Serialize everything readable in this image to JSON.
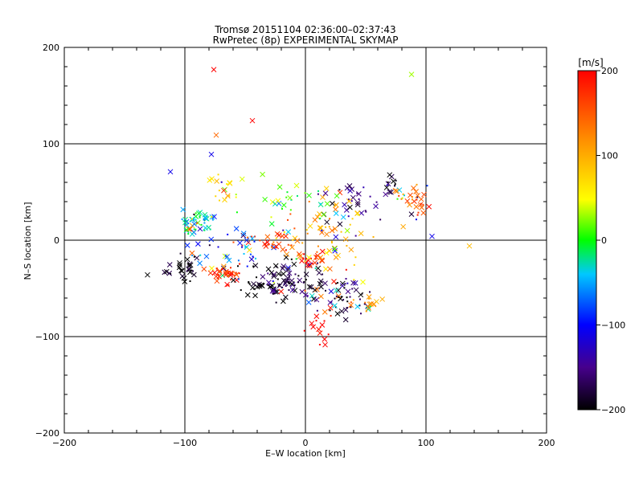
{
  "chart_data": {
    "type": "scatter",
    "title": "Tromsø 20151104 02:36:00–02:37:43",
    "subtitle": "RwPretec (8p) EXPERIMENTAL SKYMAP",
    "xlabel": "E–W location [km]",
    "ylabel": "N–S location [km]",
    "xlim": [
      -200,
      200
    ],
    "ylim": [
      -200,
      200
    ],
    "x_ticks": [
      "−200",
      "−100",
      "0",
      "100",
      "200"
    ],
    "y_ticks": [
      "−200",
      "−100",
      "0",
      "100",
      "200"
    ],
    "grid": true,
    "colorbar": {
      "label": "[m/s]",
      "range": [
        -200,
        200
      ],
      "ticks": [
        "200",
        "100",
        "0",
        "−100",
        "−200"
      ],
      "colors": [
        "#000000",
        "#400090",
        "#0000ff",
        "#00ffff",
        "#00ff00",
        "#ffff00",
        "#ff8000",
        "#ff0000"
      ]
    },
    "markers": [
      "x",
      "dot"
    ],
    "clusters": [
      {
        "x": -90,
        "y": 18,
        "sx": 8,
        "sy": 6,
        "n": 50,
        "v": -40
      },
      {
        "x": -65,
        "y": -35,
        "sx": 6,
        "sy": 5,
        "n": 45,
        "v": 180
      },
      {
        "x": -20,
        "y": -45,
        "sx": 18,
        "sy": 10,
        "n": 110,
        "v": -190
      },
      {
        "x": 30,
        "y": -55,
        "sx": 12,
        "sy": 12,
        "n": 60,
        "v": -180
      },
      {
        "x": 5,
        "y": -20,
        "sx": 5,
        "sy": 4,
        "n": 25,
        "v": 190
      },
      {
        "x": -30,
        "y": 0,
        "sx": 12,
        "sy": 6,
        "n": 30,
        "v": 170
      },
      {
        "x": 90,
        "y": 40,
        "sx": 7,
        "sy": 10,
        "n": 35,
        "v": 150
      },
      {
        "x": 70,
        "y": 60,
        "sx": 4,
        "sy": 4,
        "n": 12,
        "v": -200
      },
      {
        "x": 40,
        "y": 40,
        "sx": 15,
        "sy": 12,
        "n": 35,
        "v": -150
      },
      {
        "x": -70,
        "y": 55,
        "sx": 6,
        "sy": 10,
        "n": 20,
        "v": 60
      },
      {
        "x": 20,
        "y": 10,
        "sx": 22,
        "sy": 18,
        "n": 70,
        "v": 100
      },
      {
        "x": -100,
        "y": -30,
        "sx": 10,
        "sy": 8,
        "n": 30,
        "v": -200
      },
      {
        "x": 15,
        "y": -95,
        "sx": 6,
        "sy": 10,
        "n": 15,
        "v": 190
      },
      {
        "x": -60,
        "y": -10,
        "sx": 15,
        "sy": 10,
        "n": 30,
        "v": -80
      },
      {
        "x": 0,
        "y": 40,
        "sx": 20,
        "sy": 12,
        "n": 30,
        "v": 0
      },
      {
        "x": 50,
        "y": -65,
        "sx": 6,
        "sy": 5,
        "n": 15,
        "v": 130
      }
    ],
    "outliers": [
      {
        "x": -76,
        "y": 177,
        "v": 200
      },
      {
        "x": 88,
        "y": 172,
        "v": 30
      },
      {
        "x": -74,
        "y": 109,
        "v": 140
      },
      {
        "x": -44,
        "y": 124,
        "v": 200
      },
      {
        "x": -112,
        "y": 71,
        "v": -110
      },
      {
        "x": 105,
        "y": 4,
        "v": -110
      },
      {
        "x": 136,
        "y": -6,
        "v": 90
      },
      {
        "x": -131,
        "y": -36,
        "v": -200
      },
      {
        "x": -78,
        "y": 89,
        "v": -110
      }
    ]
  }
}
